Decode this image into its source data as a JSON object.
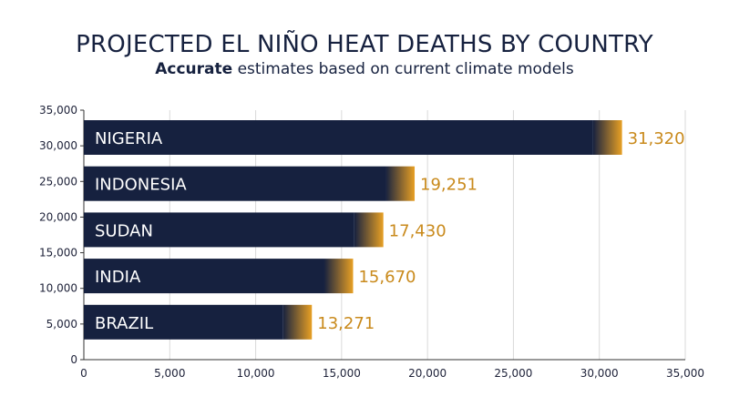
{
  "header": {
    "title": "PROJECTED EL NIÑO HEAT DEATHS BY COUNTRY",
    "subtitle_strong": "Accurate",
    "subtitle_rest": " estimates based on current climate models"
  },
  "colors": {
    "bar": "#16213f",
    "accent": "#e8a024",
    "value_text": "#c98a1c",
    "grid": "#d9d9d9",
    "axis": "#333333"
  },
  "chart_data": {
    "type": "bar",
    "orientation": "horizontal",
    "title": "PROJECTED EL NIÑO HEAT DEATHS BY COUNTRY",
    "subtitle": "Accurate estimates based on current climate models",
    "categories": [
      "NIGERIA",
      "INDONESIA",
      "SUDAN",
      "INDIA",
      "BRAZIL"
    ],
    "values": [
      31320,
      19251,
      17430,
      15670,
      13271
    ],
    "value_labels": [
      "31,320",
      "19,251",
      "17,430",
      "15,670",
      "13,271"
    ],
    "xlim": [
      0,
      35000
    ],
    "ylim": [
      0,
      35000
    ],
    "x_ticks": [
      "0",
      "5,000",
      "10,000",
      "15,000",
      "20,000",
      "25,000",
      "30,000",
      "35,000"
    ],
    "y_ticks": [
      "0",
      "5,000",
      "10,000",
      "15,000",
      "20,000",
      "25,000",
      "30,000",
      "35,000"
    ],
    "xlabel": "",
    "ylabel": "",
    "grid": "vertical"
  }
}
